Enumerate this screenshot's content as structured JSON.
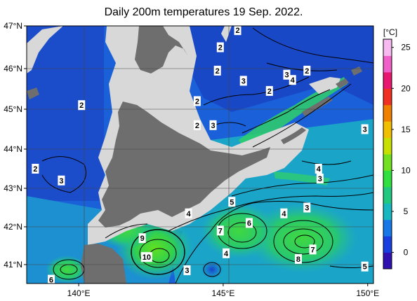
{
  "title": "Daily 200m temperatures 19 Sep. 2022.",
  "unit": "[°C]",
  "lat_ticks": [
    {
      "value": 47,
      "label": "47°N"
    },
    {
      "value": 46,
      "label": "46°N"
    },
    {
      "value": 45,
      "label": "45°N"
    },
    {
      "value": 44,
      "label": "44°N"
    },
    {
      "value": 43,
      "label": "43°N"
    },
    {
      "value": 42,
      "label": "42°N"
    },
    {
      "value": 41,
      "label": "41°N"
    }
  ],
  "lon_ticks": [
    {
      "value": 140,
      "label": "140°E"
    },
    {
      "value": 145,
      "label": "145°E"
    },
    {
      "value": 150,
      "label": "150°E"
    }
  ],
  "colorbar": {
    "min": -2,
    "max": 26,
    "ticks": [
      "0",
      "5",
      "10",
      "15",
      "20",
      "25"
    ],
    "colors": [
      "#3010b0",
      "#1a3fe0",
      "#1878e8",
      "#18b8c0",
      "#20c880",
      "#30e040",
      "#70e020",
      "#c8e000",
      "#f0c000",
      "#f08000",
      "#f03020",
      "#e81870",
      "#f060c8",
      "#f8b8f0"
    ]
  },
  "colors": {
    "land": "#6e6e6e",
    "shallow": "#d8d8d8",
    "cold_water": "#1840d0",
    "mid_water": "#1aa0c8",
    "warm_water": "#30d070"
  },
  "isotherm_labels": [
    {
      "text": "2",
      "lon": 145.5,
      "lat": 46.9
    },
    {
      "text": "2",
      "lon": 144.9,
      "lat": 46.5
    },
    {
      "text": "2",
      "lon": 144.8,
      "lat": 45.95
    },
    {
      "text": "3",
      "lon": 145.7,
      "lat": 45.7
    },
    {
      "text": "3",
      "lon": 147.2,
      "lat": 45.85
    },
    {
      "text": "4",
      "lon": 147.4,
      "lat": 45.72
    },
    {
      "text": "2",
      "lon": 147.9,
      "lat": 45.95
    },
    {
      "text": "2",
      "lon": 146.6,
      "lat": 45.45
    },
    {
      "text": "2",
      "lon": 144.1,
      "lat": 45.2
    },
    {
      "text": "2",
      "lon": 144.1,
      "lat": 44.6
    },
    {
      "text": "3",
      "lon": 144.65,
      "lat": 44.6
    },
    {
      "text": "2",
      "lon": 140.1,
      "lat": 45.1
    },
    {
      "text": "3",
      "lon": 149.9,
      "lat": 44.5
    },
    {
      "text": "2",
      "lon": 138.5,
      "lat": 43.5
    },
    {
      "text": "3",
      "lon": 139.4,
      "lat": 43.2
    },
    {
      "text": "4",
      "lon": 148.3,
      "lat": 43.5
    },
    {
      "text": "3",
      "lon": 148.35,
      "lat": 43.25
    },
    {
      "text": "5",
      "lon": 145.3,
      "lat": 42.65
    },
    {
      "text": "3",
      "lon": 147.9,
      "lat": 42.5
    },
    {
      "text": "4",
      "lon": 143.8,
      "lat": 42.35
    },
    {
      "text": "4",
      "lon": 147.1,
      "lat": 42.35
    },
    {
      "text": "6",
      "lon": 145.9,
      "lat": 42.1
    },
    {
      "text": "7",
      "lon": 144.9,
      "lat": 41.9
    },
    {
      "text": "9",
      "lon": 142.2,
      "lat": 41.7
    },
    {
      "text": "4",
      "lon": 145.1,
      "lat": 41.3
    },
    {
      "text": "7",
      "lon": 148.1,
      "lat": 41.4
    },
    {
      "text": "8",
      "lon": 147.6,
      "lat": 41.15
    },
    {
      "text": "10",
      "lon": 142.35,
      "lat": 41.2
    },
    {
      "text": "3",
      "lon": 143.75,
      "lat": 40.85
    },
    {
      "text": "5",
      "lon": 149.9,
      "lat": 40.95
    },
    {
      "text": "6",
      "lon": 139.05,
      "lat": 40.6
    }
  ]
}
